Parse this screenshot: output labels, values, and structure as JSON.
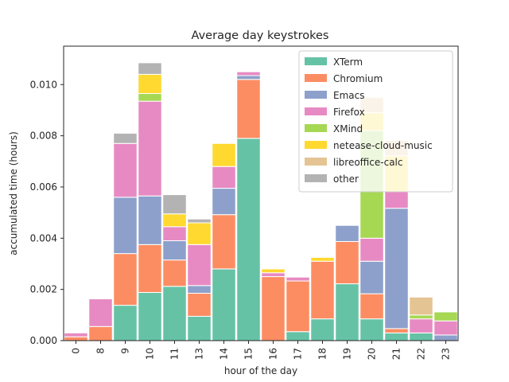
{
  "chart_data": {
    "type": "bar",
    "stacked": true,
    "title": "Average day keystrokes",
    "xlabel": "hour of the day",
    "ylabel": "accumulated time (hours)",
    "ylim": [
      0,
      0.0115
    ],
    "yticks": [
      "0.000",
      "0.002",
      "0.004",
      "0.006",
      "0.008",
      "0.010"
    ],
    "grid": false,
    "legend_position": "top-right",
    "categories": [
      "0",
      "8",
      "9",
      "10",
      "11",
      "13",
      "14",
      "15",
      "16",
      "17",
      "18",
      "19",
      "20",
      "21",
      "22",
      "23"
    ],
    "series": [
      {
        "name": "XTerm",
        "color": "#66c2a5",
        "values": [
          0,
          0,
          0.00138,
          0.00188,
          0.00212,
          0.00095,
          0.0028,
          0.0079,
          0,
          0.00035,
          0.00085,
          0.00222,
          0.00085,
          0.0003,
          0.0003,
          0
        ]
      },
      {
        "name": "Chromium",
        "color": "#fc8d62",
        "values": [
          0.00015,
          0.00055,
          0.00202,
          0.00187,
          0.00103,
          0.0009,
          0.00212,
          0.0023,
          0.0025,
          0.00198,
          0.00225,
          0.00165,
          0.00098,
          0.00017,
          0,
          0
        ]
      },
      {
        "name": "Emacs",
        "color": "#8da0cb",
        "values": [
          0,
          0,
          0.0022,
          0.0019,
          0.00075,
          0.0003,
          0.00103,
          0.00015,
          0,
          0,
          0,
          0.00063,
          0.00127,
          0.0047,
          0,
          0.00022
        ]
      },
      {
        "name": "Firefox",
        "color": "#e78ac3",
        "values": [
          0.00015,
          0.00108,
          0.0021,
          0.0037,
          0.00055,
          0.0016,
          0.00085,
          0.00015,
          0.00015,
          0.00015,
          0,
          0,
          0.0009,
          0.00065,
          0.00055,
          0.00055
        ]
      },
      {
        "name": "XMind",
        "color": "#a6d854",
        "values": [
          0,
          0,
          0,
          0.0003,
          0,
          0,
          0,
          0,
          0,
          0,
          0,
          0,
          0.0042,
          0,
          0.00015,
          0.00035
        ]
      },
      {
        "name": "netease-cloud-music",
        "color": "#ffd92f",
        "values": [
          0,
          0,
          0,
          0.00075,
          0.0005,
          0.00085,
          0.0009,
          0,
          0.00015,
          0,
          0.00015,
          0,
          0.0007,
          0.0014,
          0,
          0
        ]
      },
      {
        "name": "libreoffice-calc",
        "color": "#e5c494",
        "values": [
          0,
          0,
          0,
          0,
          0,
          0,
          0,
          0,
          0,
          0,
          0,
          0,
          0.0006,
          0.0006,
          0.0007,
          0
        ]
      },
      {
        "name": "other",
        "color": "#b3b3b3",
        "values": [
          0,
          0,
          0.0004,
          0.00045,
          0.00075,
          0.00015,
          0,
          0,
          0,
          0,
          0,
          0,
          0,
          0,
          0,
          0
        ]
      }
    ]
  }
}
